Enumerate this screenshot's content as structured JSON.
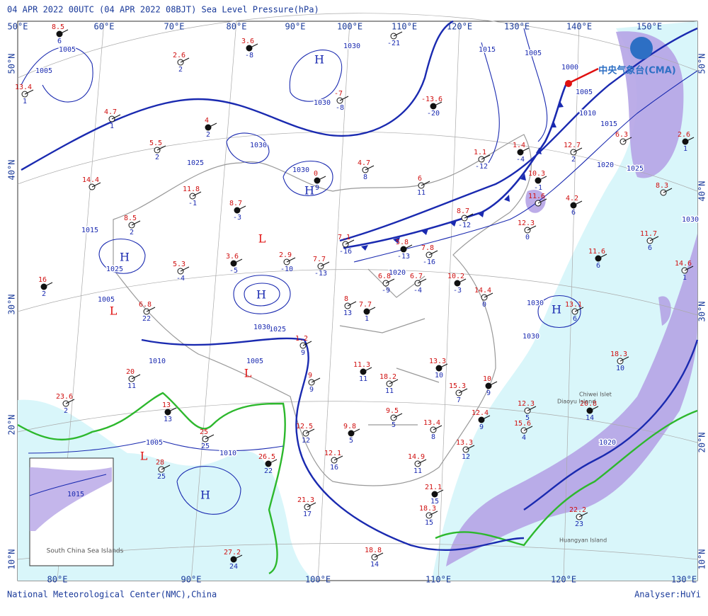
{
  "header": {
    "title": "04 APR 2022 00UTC (04 APR 2022 08BJT) Sea Level Pressure(hPa)"
  },
  "footer": {
    "left": "National Meteorological Center(NMC),China",
    "right": "Analyser:HuYi"
  },
  "logo": {
    "text": "中央气象台(CMA)"
  },
  "axes": {
    "top_lon": [
      "50°E",
      "60°E",
      "70°E",
      "80°E",
      "90°E",
      "100°E",
      "110°E",
      "120°E",
      "130°E",
      "140°E",
      "150°E"
    ],
    "bottom_lon": [
      "80°E",
      "90°E",
      "100°E",
      "110°E",
      "120°E",
      "130°E"
    ],
    "left_lat": [
      "50°N",
      "40°N",
      "30°N",
      "20°N",
      "10°N"
    ],
    "right_lat": [
      "50°N",
      "40°N",
      "30°N",
      "20°N",
      "10°N"
    ]
  },
  "pressure_centers": [
    "H",
    "H",
    "H",
    "H",
    "H",
    "H",
    "L",
    "L",
    "L",
    "L"
  ],
  "isobar_labels": [
    "1005",
    "1005",
    "1030",
    "1015",
    "1005",
    "1000",
    "1005",
    "1010",
    "1015",
    "1020",
    "1025",
    "1030",
    "1030",
    "1030",
    "1030",
    "1025",
    "1015",
    "1025",
    "1005",
    "1005",
    "1010",
    "1025",
    "1030",
    "1020",
    "1010",
    "1020",
    "1005",
    "1030",
    "1030"
  ],
  "stations": [
    {
      "temp": "8.5",
      "dew": "6"
    },
    {
      "temp": "13.4",
      "dew": "1"
    },
    {
      "temp": "2.6",
      "dew": "2"
    },
    {
      "temp": "3.6",
      "dew": "-8"
    },
    {
      "temp": "-7",
      "dew": "-8"
    },
    {
      "dew": "-21"
    },
    {
      "temp": "-13.6",
      "dew": "-20"
    },
    {
      "temp": "4.7",
      "dew": "1"
    },
    {
      "temp": "5.5",
      "dew": "2"
    },
    {
      "temp": "4",
      "dew": "2"
    },
    {
      "temp": "14.4"
    },
    {
      "temp": "11.8",
      "dew": "-1"
    },
    {
      "temp": "8.7",
      "dew": "-3"
    },
    {
      "temp": "8.5",
      "dew": "2"
    },
    {
      "temp": "4.7",
      "dew": "8"
    },
    {
      "temp": "0",
      "dew": "9"
    },
    {
      "temp": "6",
      "dew": "11"
    },
    {
      "temp": "1.1",
      "dew": "-12"
    },
    {
      "temp": "1.4",
      "dew": "-4"
    },
    {
      "temp": "8.7",
      "dew": "-12"
    },
    {
      "temp": "7.1",
      "dew": "-16"
    },
    {
      "temp": "5.8",
      "dew": "-13"
    },
    {
      "temp": "7.8",
      "dew": "-16"
    },
    {
      "temp": "5.3",
      "dew": "-4"
    },
    {
      "temp": "3.6",
      "dew": "-5"
    },
    {
      "temp": "2.9",
      "dew": "-10"
    },
    {
      "temp": "7.7",
      "dew": "-13"
    },
    {
      "temp": "16",
      "dew": "2"
    },
    {
      "temp": "6.8",
      "dew": "22"
    },
    {
      "temp": "8",
      "dew": "13"
    },
    {
      "temp": "7.7",
      "dew": "1"
    },
    {
      "temp": "6.8",
      "dew": "-9"
    },
    {
      "temp": "6.7",
      "dew": "-4"
    },
    {
      "temp": "10.2",
      "dew": "-3"
    },
    {
      "temp": "14.4",
      "dew": "0"
    },
    {
      "temp": "1.2",
      "dew": "9"
    },
    {
      "temp": "11.3",
      "dew": "11"
    },
    {
      "temp": "18.2",
      "dew": "11"
    },
    {
      "temp": "9",
      "dew": "9"
    },
    {
      "temp": "13.3",
      "dew": "10"
    },
    {
      "temp": "20",
      "dew": "11"
    },
    {
      "temp": "23.6",
      "dew": "2"
    },
    {
      "temp": "13",
      "dew": "13"
    },
    {
      "temp": "25",
      "dew": "25"
    },
    {
      "temp": "28",
      "dew": "25"
    },
    {
      "temp": "26.5",
      "dew": "22"
    },
    {
      "temp": "12.5",
      "dew": "12"
    },
    {
      "temp": "12.1",
      "dew": "16"
    },
    {
      "temp": "9.8",
      "dew": "5"
    },
    {
      "temp": "9.5",
      "dew": "5"
    },
    {
      "temp": "21.3",
      "dew": "17"
    },
    {
      "temp": "27.2",
      "dew": "24"
    },
    {
      "temp": "18.8",
      "dew": "14"
    },
    {
      "temp": "14.9",
      "dew": "11"
    },
    {
      "temp": "21.1",
      "dew": "15"
    },
    {
      "temp": "18.3",
      "dew": "15"
    },
    {
      "temp": "13.3",
      "dew": "12"
    },
    {
      "temp": "12.4",
      "dew": "9"
    },
    {
      "temp": "13.4",
      "dew": "8"
    },
    {
      "temp": "15.3",
      "dew": "7"
    },
    {
      "temp": "10",
      "dew": "9"
    },
    {
      "temp": "15.6",
      "dew": "4"
    },
    {
      "temp": "12.3",
      "dew": "5"
    },
    {
      "temp": "20.8",
      "dew": "14"
    },
    {
      "temp": "18.3",
      "dew": "10"
    },
    {
      "temp": "22.2",
      "dew": "23"
    },
    {
      "temp": "11.6",
      "dew": "6"
    },
    {
      "temp": "11.7",
      "dew": "6"
    },
    {
      "temp": "8.3"
    },
    {
      "temp": "2.6",
      "dew": "1"
    },
    {
      "temp": "14.6",
      "dew": "1"
    },
    {
      "temp": "13.1",
      "dew": "6"
    },
    {
      "temp": "10.3",
      "dew": "-1"
    },
    {
      "temp": "11.6"
    },
    {
      "temp": "12.3",
      "dew": "0"
    },
    {
      "temp": "4.2",
      "dew": "6"
    },
    {
      "temp": "12.7",
      "dew": "2"
    },
    {
      "temp": "6.3"
    }
  ],
  "place_labels": [
    "Chiwei Islet",
    "Diaoyu Island",
    "Huangyan Island"
  ],
  "inset": {
    "label": "South China Sea Islands",
    "isobar": "1015"
  }
}
